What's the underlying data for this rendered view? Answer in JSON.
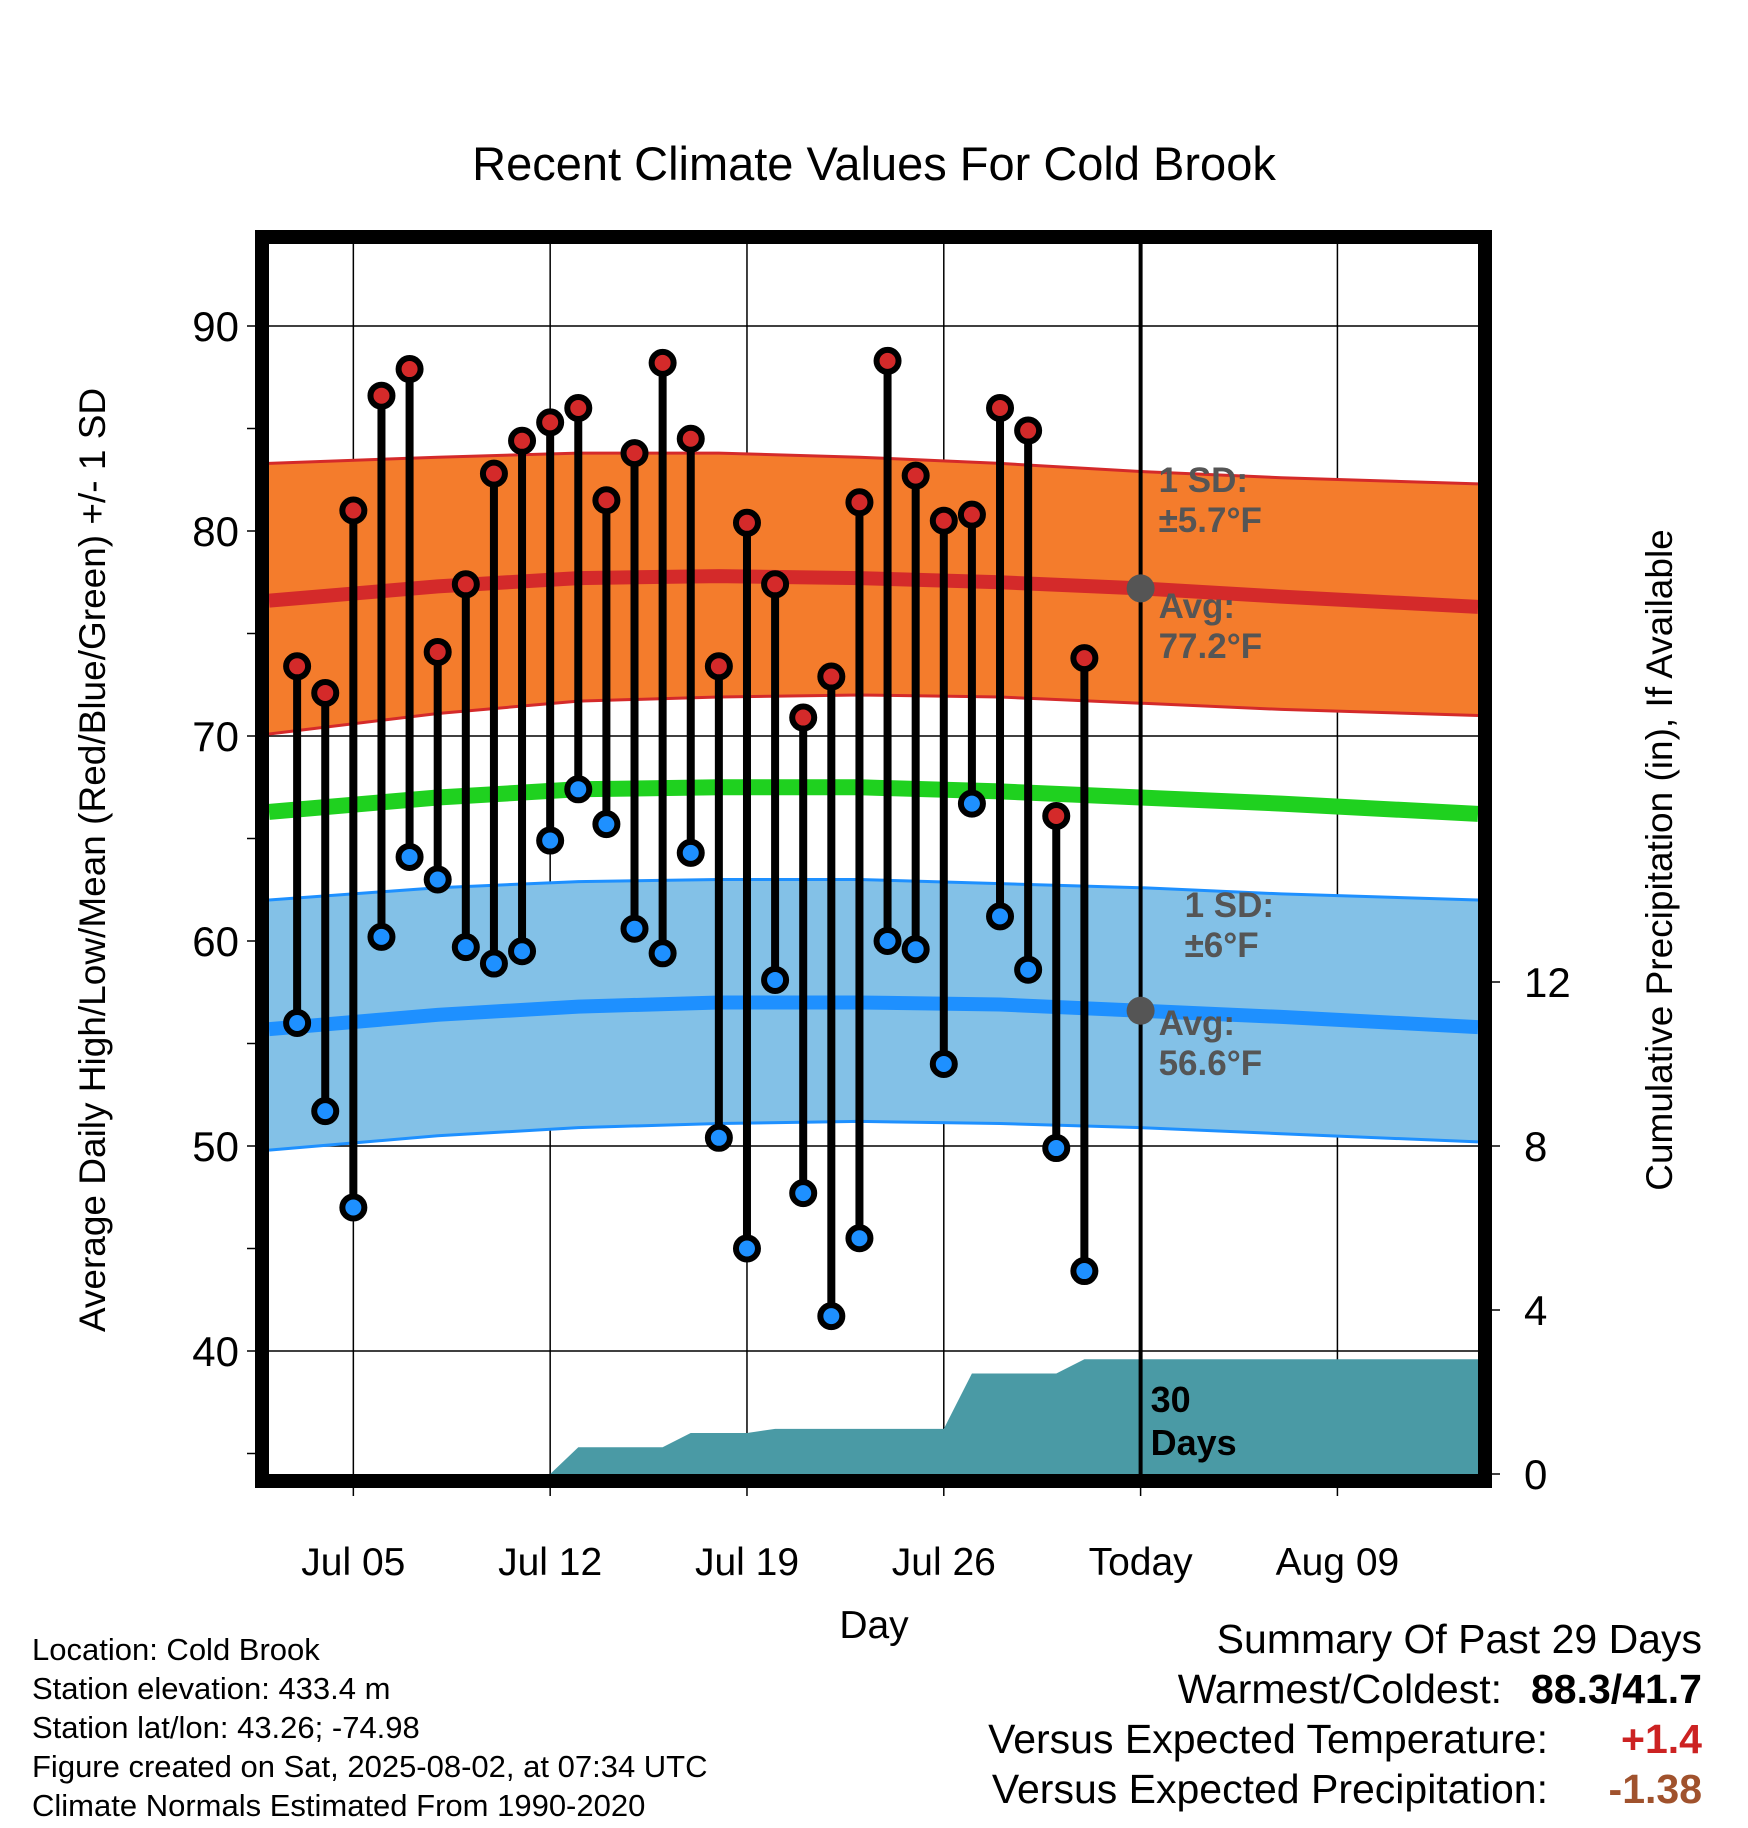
{
  "chart_data": {
    "type": "line",
    "title": "Recent Climate Values For Cold Brook",
    "xlabel": "Day",
    "ylabel": "Average Daily High/Low/Mean (Red/Blue/Green) +/- 1 SD",
    "y2label": "Cumulative Precipitation (in), If Available",
    "x_range_days": [
      -31,
      12
    ],
    "x_ticks": [
      {
        "day": -28,
        "label": "Jul 05"
      },
      {
        "day": -21,
        "label": "Jul 12"
      },
      {
        "day": -14,
        "label": "Jul 19"
      },
      {
        "day": -7,
        "label": "Jul 26"
      },
      {
        "day": 0,
        "label": "Today"
      },
      {
        "day": 7,
        "label": "Aug 09"
      }
    ],
    "ylim": [
      34,
      94
    ],
    "y_ticks": [
      40,
      50,
      60,
      70,
      80,
      90
    ],
    "y2lim": [
      0,
      30
    ],
    "y2_ticks": [
      0,
      4,
      8,
      12
    ],
    "grid": true,
    "today_day": 0,
    "today_label": "30 Days",
    "normals": {
      "day": [
        -31,
        -25,
        -20,
        -15,
        -10,
        -5,
        0,
        5,
        12
      ],
      "high_avg": [
        76.6,
        77.3,
        77.7,
        77.8,
        77.7,
        77.5,
        77.2,
        76.8,
        76.3
      ],
      "high_upper": [
        83.3,
        83.6,
        83.8,
        83.8,
        83.6,
        83.3,
        82.9,
        82.6,
        82.3
      ],
      "high_lower": [
        70.1,
        71.1,
        71.7,
        71.9,
        72.0,
        71.9,
        71.6,
        71.3,
        71.0
      ],
      "mean_avg": [
        66.3,
        67.0,
        67.4,
        67.5,
        67.5,
        67.3,
        67.0,
        66.7,
        66.2
      ],
      "low_avg": [
        55.7,
        56.4,
        56.8,
        57.0,
        57.0,
        56.9,
        56.6,
        56.3,
        55.8
      ],
      "low_upper": [
        62.0,
        62.6,
        62.9,
        63.0,
        63.0,
        62.8,
        62.6,
        62.3,
        62.0
      ],
      "low_lower": [
        49.8,
        50.5,
        50.9,
        51.1,
        51.2,
        51.1,
        50.9,
        50.6,
        50.2
      ]
    },
    "labels": {
      "high_sd_line1": "1 SD:",
      "high_sd_line2": "±5.7°F",
      "high_avg_line1": "Avg:",
      "high_avg_line2": "77.2°F",
      "low_sd_line1": "1 SD:",
      "low_sd_line2": "±6°F",
      "low_avg_line1": "Avg:",
      "low_avg_line2": "56.6°F"
    },
    "today_markers": [
      77.2,
      56.6
    ],
    "daily": {
      "day": [
        -30,
        -29,
        -28,
        -27,
        -26,
        -25,
        -24,
        -23,
        -22,
        -21,
        -20,
        -19,
        -18,
        -17,
        -16,
        -15,
        -14,
        -13,
        -12,
        -11,
        -10,
        -9,
        -8,
        -7,
        -6,
        -5,
        -4,
        -3,
        -2
      ],
      "high": [
        73.4,
        72.1,
        81.0,
        86.6,
        87.9,
        74.1,
        77.4,
        82.8,
        84.4,
        85.3,
        86.0,
        81.5,
        83.8,
        88.2,
        84.5,
        73.4,
        80.4,
        77.4,
        70.9,
        72.9,
        81.4,
        88.3,
        82.7,
        80.5,
        80.8,
        86.0,
        84.9,
        66.1,
        73.8
      ],
      "low": [
        56.0,
        51.7,
        47.0,
        60.2,
        64.1,
        63.0,
        59.7,
        58.9,
        59.5,
        64.9,
        67.4,
        65.7,
        60.6,
        59.4,
        64.3,
        50.4,
        45.0,
        58.1,
        47.7,
        41.7,
        45.5,
        60.0,
        59.6,
        54.0,
        66.7,
        61.2,
        58.6,
        49.9,
        43.9
      ]
    },
    "precip_cumulative": {
      "day": [
        -31,
        -21,
        -20,
        -18,
        -17,
        -16,
        -14,
        -13,
        -12,
        -11,
        -7,
        -6,
        -3,
        -2,
        12
      ],
      "value": [
        0,
        0,
        0.65,
        0.65,
        0.65,
        1.0,
        1.0,
        1.1,
        1.1,
        1.1,
        1.1,
        2.45,
        2.45,
        2.8,
        2.8
      ]
    }
  },
  "footer": {
    "location": "Location: Cold Brook",
    "elevation": "Station elevation: 433.4 m",
    "latlon": "Station lat/lon: 43.26; -74.98",
    "created": "Figure created on Sat, 2025-08-02, at 07:34 UTC",
    "normals": "Climate Normals Estimated From 1990-2020"
  },
  "summary": {
    "title": "Summary Of Past 29 Days",
    "warm_cold_label": "Warmest/Coldest:",
    "warm_cold_value": "88.3/41.7",
    "temp_label": "Versus Expected Temperature:",
    "temp_value": "+1.4",
    "precip_label": "Versus Expected Precipitation:",
    "precip_value": "-1.38"
  },
  "colors": {
    "high_band": "#f47c2c",
    "high_line": "#d42a2a",
    "low_band": "#83c1e7",
    "low_line": "#1e90ff",
    "mean_line": "#1fd11f",
    "precip_fill": "#4a9aa5",
    "high_dot": "#d42a2a",
    "low_dot": "#1e90ff",
    "annotation": "#555555",
    "today_marker": "#555555"
  }
}
